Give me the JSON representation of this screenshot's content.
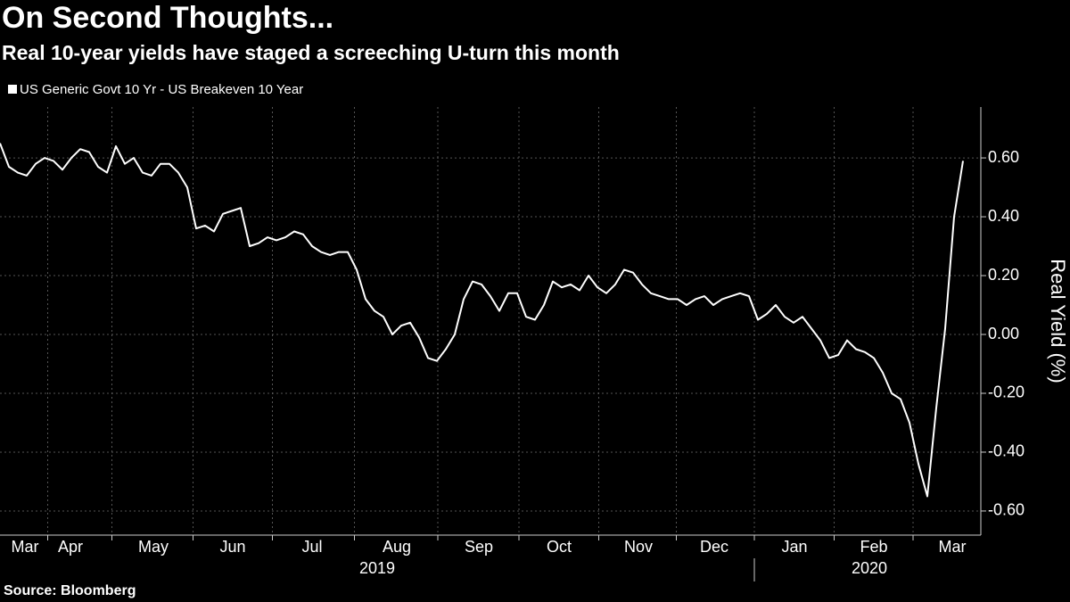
{
  "chart_data": {
    "type": "line",
    "title": "On Second Thoughts...",
    "subtitle": "Real 10-year yields have staged a screeching U-turn this month",
    "y_label": "Real Yield (%)",
    "source": "Source: Bloomberg",
    "grid": true,
    "xlim": [
      0,
      110
    ],
    "ylim": [
      -0.682,
      0.773
    ],
    "yticks": [
      {
        "value": -0.6,
        "label": "-0.60"
      },
      {
        "value": -0.4,
        "label": "-0.40"
      },
      {
        "value": -0.2,
        "label": "-0.20"
      },
      {
        "value": 0,
        "label": "0.00"
      },
      {
        "value": 0.2,
        "label": "0.20"
      },
      {
        "value": 0.4,
        "label": "0.40"
      },
      {
        "value": 0.6,
        "label": "0.60"
      }
    ],
    "xticks": [
      {
        "value": 2.8,
        "label": "Mar"
      },
      {
        "value": 7.9,
        "label": "Apr"
      },
      {
        "value": 17.2,
        "label": "May"
      },
      {
        "value": 26.1,
        "label": "Jun"
      },
      {
        "value": 35,
        "label": "Jul"
      },
      {
        "value": 44.5,
        "label": "Aug"
      },
      {
        "value": 53.7,
        "label": "Sep"
      },
      {
        "value": 62.7,
        "label": "Oct"
      },
      {
        "value": 71.6,
        "label": "Nov"
      },
      {
        "value": 80.1,
        "label": "Dec"
      },
      {
        "value": 89.1,
        "label": "Jan"
      },
      {
        "value": 98,
        "label": "Feb"
      },
      {
        "value": 106.8,
        "label": "Mar"
      }
    ],
    "year_labels": [
      {
        "value": 42.3,
        "label": "2019"
      },
      {
        "value": 97.5,
        "label": "2020"
      }
    ],
    "series": [
      {
        "name": "US Generic Govt 10 Yr - US Breakeven 10 Year",
        "color": "#ffffff",
        "values": [
          0.65,
          0.57,
          0.55,
          0.54,
          0.58,
          0.6,
          0.59,
          0.56,
          0.6,
          0.63,
          0.62,
          0.57,
          0.55,
          0.64,
          0.58,
          0.6,
          0.55,
          0.54,
          0.58,
          0.58,
          0.55,
          0.5,
          0.36,
          0.37,
          0.35,
          0.41,
          0.42,
          0.43,
          0.3,
          0.31,
          0.33,
          0.32,
          0.33,
          0.35,
          0.34,
          0.3,
          0.28,
          0.27,
          0.28,
          0.28,
          0.22,
          0.12,
          0.08,
          0.06,
          0.0,
          0.03,
          0.04,
          -0.01,
          -0.08,
          -0.09,
          -0.05,
          0.0,
          0.12,
          0.18,
          0.17,
          0.13,
          0.08,
          0.14,
          0.14,
          0.06,
          0.05,
          0.1,
          0.18,
          0.16,
          0.17,
          0.15,
          0.2,
          0.16,
          0.14,
          0.17,
          0.22,
          0.21,
          0.17,
          0.14,
          0.13,
          0.12,
          0.12,
          0.1,
          0.12,
          0.13,
          0.1,
          0.12,
          0.13,
          0.14,
          0.13,
          0.05,
          0.07,
          0.1,
          0.06,
          0.04,
          0.06,
          0.02,
          -0.02,
          -0.08,
          -0.07,
          -0.02,
          -0.05,
          -0.06,
          -0.08,
          -0.13,
          -0.2,
          -0.22,
          -0.3,
          -0.44,
          -0.55,
          -0.25,
          0.02,
          0.4,
          0.59
        ]
      }
    ]
  }
}
